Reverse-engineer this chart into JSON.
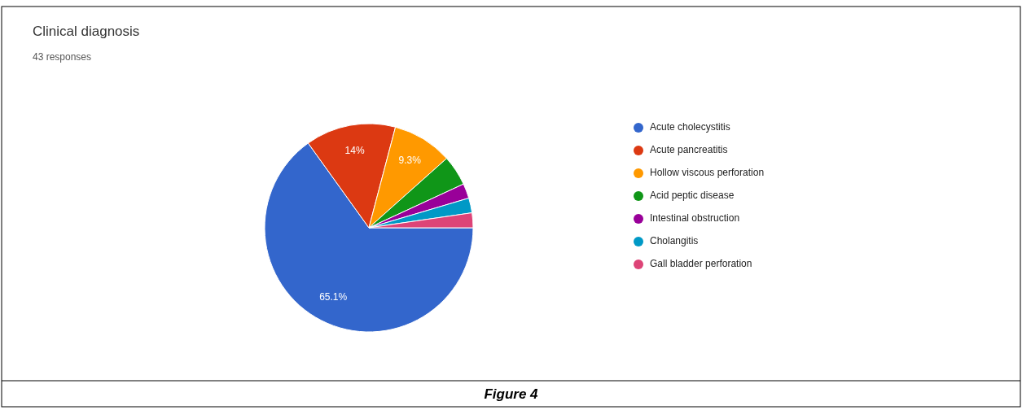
{
  "chart_data": {
    "type": "pie",
    "title": "Clinical diagnosis",
    "subtitle": "43 responses",
    "categories": [
      "Acute cholecystitis",
      "Acute pancreatitis",
      "Hollow viscous perforation",
      "Acid peptic disease",
      "Intestinal obstruction",
      "Cholangitis",
      "Gall bladder perforation"
    ],
    "values": [
      65.1,
      14,
      9.3,
      4.7,
      2.3,
      2.3,
      2.3
    ],
    "colors": [
      "#3366cc",
      "#dc3912",
      "#ff9900",
      "#109618",
      "#990099",
      "#0099c6",
      "#dd4477"
    ],
    "value_labels": [
      "65.1%",
      "14%",
      "9.3%",
      null,
      null,
      null,
      null
    ],
    "legend": "right",
    "annotations": [
      "Figure 4"
    ]
  }
}
